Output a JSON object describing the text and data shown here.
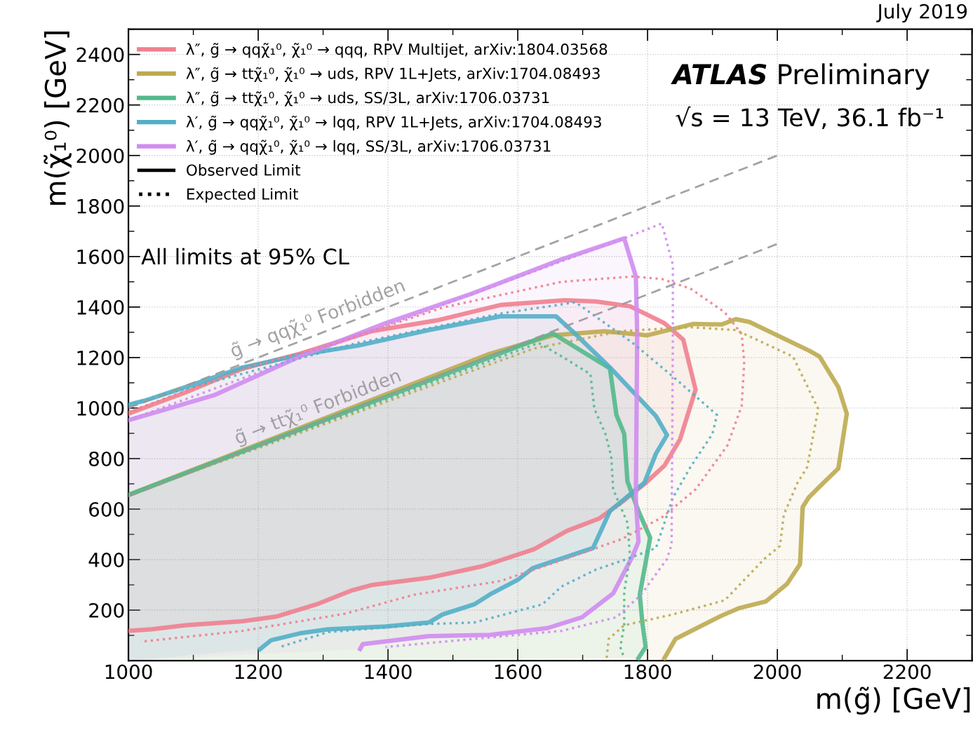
{
  "chart_data": {
    "type": "line",
    "xlabel": "m(g̃) [GeV]",
    "ylabel": "m(χ̃₁⁰) [GeV]",
    "xlim": [
      1000,
      2300
    ],
    "xticks": [
      1000,
      1200,
      1400,
      1600,
      1800,
      2000,
      2200
    ],
    "ylim": [
      0,
      2500
    ],
    "yticks": [
      200,
      400,
      600,
      800,
      1000,
      1200,
      1400,
      1600,
      1800,
      2000,
      2200,
      2400
    ],
    "grid": true,
    "legend": "top left",
    "annotations": [
      "ATLAS",
      "Preliminary",
      "√s = 13 TeV, 36.1 fb⁻¹",
      "All limits at 95% CL",
      "July 2019",
      "Observed Limit",
      "Expected Limit",
      "g̃ → qqχ̃₁⁰ Forbidden",
      "g̃ → ttχ̃₁⁰ Forbidden"
    ],
    "series": [
      {
        "name": "λ″, g̃ → qqχ̃₁⁰, χ̃₁⁰ → qqq, RPV Multijet, arXiv:1804.03568",
        "type": "area",
        "line_style": "solid",
        "color": "#f0808f",
        "x": [
          1000,
          1088,
          1176,
          1264,
          1374,
          1475,
          1573,
          1672,
          1720,
          1773,
          1826,
          1855,
          1874,
          1850,
          1826,
          1795,
          1764,
          1725,
          1676,
          1625,
          1546,
          1463,
          1374,
          1343,
          1290,
          1229,
          1176,
          1088,
          1036,
          1000
        ],
        "values": [
          978,
          1062,
          1156,
          1215,
          1304,
          1347,
          1408,
          1427,
          1422,
          1403,
          1336,
          1271,
          1073,
          876,
          772,
          699,
          635,
          562,
          514,
          441,
          374,
          328,
          299,
          277,
          223,
          175,
          156,
          140,
          124,
          118
        ]
      },
      {
        "name": "λ″, g̃ → ttχ̃₁⁰, χ̃₁⁰ → uds, RPV 1L+Jets, arXiv:1704.08493",
        "type": "area",
        "line_style": "solid",
        "color": "#bcaa50",
        "x": [
          1000,
          1557,
          1654,
          1733,
          1799,
          1870,
          1914,
          1936,
          1957,
          2050,
          2065,
          2094,
          2107,
          2094,
          2067,
          2048,
          2039,
          2035,
          2015,
          1982,
          1940,
          1914,
          1843,
          1826
        ],
        "values": [
          656,
          1215,
          1288,
          1304,
          1288,
          1333,
          1331,
          1352,
          1341,
          1226,
          1204,
          1083,
          978,
          761,
          694,
          645,
          608,
          382,
          304,
          234,
          207,
          178,
          86,
          10
        ]
      },
      {
        "name": "λ″, g̃ → ttχ̃₁⁰, χ̃₁⁰ → uds, SS/3L, arXiv:1706.03731",
        "type": "area",
        "line_style": "solid",
        "color": "#52b98c",
        "x": [
          1000,
          1654,
          1742,
          1752,
          1764,
          1769,
          1786,
          1804,
          1795,
          1788,
          1792,
          1797,
          1786
        ],
        "values": [
          656,
          1296,
          1157,
          973,
          898,
          710,
          592,
          487,
          360,
          261,
          151,
          54,
          10
        ]
      },
      {
        "name": "λ′, g̃ → qqχ̃₁⁰, χ̃₁⁰ → lqq, RPV 1L+Jets, arXiv:1704.08493",
        "type": "area",
        "line_style": "solid",
        "color": "#52afc8",
        "x": [
          1000,
          1026,
          1088,
          1176,
          1264,
          1353,
          1463,
          1573,
          1651,
          1659,
          1689,
          1742,
          1813,
          1830,
          1813,
          1795,
          1777,
          1742,
          1716,
          1623,
          1600,
          1559,
          1533,
          1484,
          1463,
          1396,
          1308,
          1264,
          1220,
          1203
        ],
        "values": [
          1013,
          1030,
          1083,
          1161,
          1210,
          1247,
          1309,
          1363,
          1363,
          1363,
          1293,
          1161,
          968,
          893,
          820,
          704,
          667,
          592,
          446,
          366,
          320,
          265,
          223,
          183,
          151,
          135,
          124,
          108,
          81,
          46
        ]
      },
      {
        "name": "λ′, g̃ → qqχ̃₁⁰, χ̃₁⁰ → lqq, SS/3L, arXiv:1706.03731",
        "type": "area",
        "line_style": "solid",
        "color": "#d08cf0",
        "x": [
          1000,
          1132,
          1264,
          1396,
          1528,
          1668,
          1764,
          1782,
          1784,
          1782,
          1786,
          1777,
          1747,
          1699,
          1646,
          1557,
          1463,
          1361,
          1357
        ],
        "values": [
          952,
          1051,
          1204,
          1336,
          1452,
          1589,
          1672,
          1521,
          1293,
          635,
          471,
          414,
          266,
          172,
          129,
          102,
          97,
          65,
          46
        ]
      },
      {
        "line_style": "dotted",
        "color": "#f0808f",
        "x": [
          1000,
          1198,
          1308,
          1484,
          1668,
          1777,
          1822,
          1866,
          1919,
          1945,
          1949,
          1945,
          1923,
          1874,
          1822,
          1760,
          1668,
          1573,
          1440,
          1334,
          1176,
          1019
        ],
        "values": [
          985,
          1172,
          1247,
          1398,
          1500,
          1521,
          1511,
          1473,
          1379,
          1293,
          1183,
          1008,
          852,
          678,
          567,
          481,
          398,
          315,
          261,
          186,
          118,
          75
        ]
      },
      {
        "line_style": "dotted",
        "color": "#bcaa50",
        "x": [
          1000,
          1625,
          1760,
          1866,
          1936,
          2024,
          2063,
          2046,
          2031,
          2010,
          2004,
          1980,
          1919,
          1839,
          1764,
          1740,
          1737
        ],
        "values": [
          656,
          1236,
          1305,
          1320,
          1309,
          1204,
          997,
          766,
          704,
          578,
          454,
          403,
          239,
          183,
          140,
          86,
          10
        ]
      },
      {
        "line_style": "dotted",
        "color": "#52b98c",
        "x": [
          1000,
          1632,
          1668,
          1712,
          1718,
          1735,
          1744,
          1747,
          1769,
          1773,
          1764,
          1764,
          1758,
          1764
        ],
        "values": [
          656,
          1258,
          1204,
          1134,
          997,
          898,
          809,
          678,
          546,
          414,
          272,
          140,
          54,
          10
        ]
      },
      {
        "line_style": "dotted",
        "color": "#52afc8",
        "x": [
          1000,
          1353,
          1573,
          1689,
          1777,
          1843,
          1907,
          1900,
          1866,
          1839,
          1813,
          1769,
          1720,
          1667,
          1638,
          1533,
          1463,
          1308,
          1233
        ],
        "values": [
          1015,
          1258,
          1374,
          1419,
          1258,
          1116,
          973,
          898,
          766,
          645,
          446,
          403,
          360,
          293,
          223,
          151,
          145,
          113,
          54
        ]
      },
      {
        "line_style": "dotted",
        "color": "#d08cf0",
        "x": [
          1000,
          1764,
          1822,
          1839,
          1839,
          1837,
          1830,
          1790,
          1752,
          1668,
          1396
        ],
        "values": [
          952,
          1672,
          1731,
          1567,
          1293,
          460,
          403,
          261,
          172,
          118,
          54
        ]
      },
      {
        "line_style": "dashed",
        "color": "#999999",
        "x": [
          1000,
          2000
        ],
        "values": [
          1000,
          2000
        ]
      },
      {
        "line_style": "dashed",
        "color": "#999999",
        "x": [
          1000,
          2000
        ],
        "values": [
          650,
          1650
        ]
      }
    ]
  }
}
